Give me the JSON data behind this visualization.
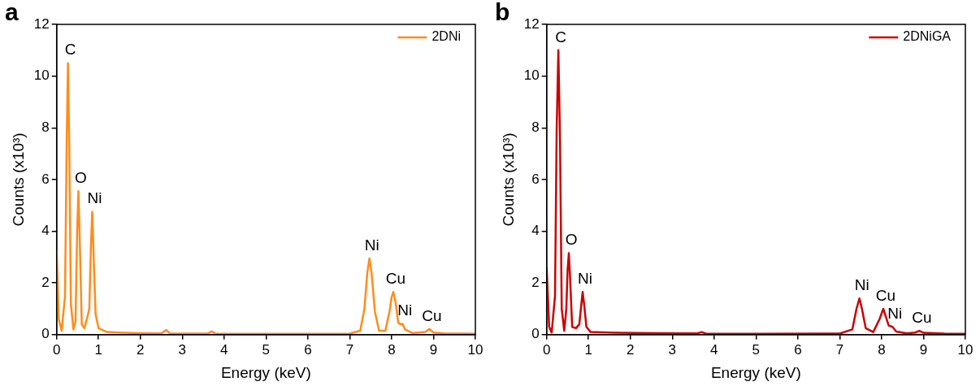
{
  "chart_data": [
    {
      "type": "line",
      "title": "a",
      "xlabel": "Energy (keV)",
      "ylabel": "Counts (x10³)",
      "xlim": [
        0,
        10
      ],
      "xticks": [
        0,
        1,
        2,
        3,
        4,
        5,
        6,
        7,
        8,
        9,
        10
      ],
      "ylim": [
        0,
        12
      ],
      "yticks": [
        0,
        2,
        4,
        6,
        8,
        10,
        12
      ],
      "legend": "top right",
      "series": [
        {
          "name": "2DNi",
          "color": "#ff8c1a",
          "x": [
            0,
            0.05,
            0.12,
            0.2,
            0.24,
            0.27,
            0.3,
            0.34,
            0.4,
            0.45,
            0.49,
            0.52,
            0.55,
            0.6,
            0.66,
            0.72,
            0.78,
            0.82,
            0.85,
            0.88,
            0.93,
            1.0,
            1.2,
            1.5,
            2.0,
            2.5,
            2.55,
            2.62,
            2.7,
            3.0,
            3.6,
            3.7,
            3.8,
            5,
            6,
            7,
            7.25,
            7.35,
            7.42,
            7.47,
            7.52,
            7.6,
            7.7,
            7.85,
            7.95,
            8.0,
            8.04,
            8.09,
            8.16,
            8.22,
            8.26,
            8.32,
            8.5,
            8.8,
            8.9,
            9.0,
            9.3,
            9.8,
            10
          ],
          "values": [
            3.3,
            0.6,
            0.15,
            1.5,
            7.5,
            10.5,
            7.5,
            1.2,
            0.2,
            0.5,
            4.0,
            5.55,
            3.8,
            0.4,
            0.25,
            0.6,
            1.0,
            3.5,
            4.75,
            3.2,
            0.8,
            0.25,
            0.1,
            0.08,
            0.06,
            0.05,
            0.1,
            0.18,
            0.05,
            0.04,
            0.04,
            0.12,
            0.04,
            0.03,
            0.03,
            0.04,
            0.15,
            1.0,
            2.4,
            2.95,
            2.4,
            0.9,
            0.15,
            0.15,
            0.9,
            1.45,
            1.65,
            1.3,
            0.45,
            0.4,
            0.42,
            0.2,
            0.06,
            0.1,
            0.22,
            0.08,
            0.04,
            0.04,
            0.03
          ]
        }
      ],
      "annotations": [
        {
          "text": "C",
          "x": 0.27,
          "y": 10.5
        },
        {
          "text": "O",
          "x": 0.52,
          "y": 5.55
        },
        {
          "text": "Ni",
          "x": 0.85,
          "y": 4.75
        },
        {
          "text": "Ni",
          "x": 7.47,
          "y": 2.95
        },
        {
          "text": "Cu",
          "x": 8.04,
          "y": 1.65
        },
        {
          "text": "Ni",
          "x": 8.26,
          "y": 0.42
        },
        {
          "text": "Cu",
          "x": 8.9,
          "y": 0.22
        }
      ]
    },
    {
      "type": "line",
      "title": "b",
      "xlabel": "Energy (keV)",
      "ylabel": "Counts (x10³)",
      "xlim": [
        0,
        10
      ],
      "xticks": [
        0,
        1,
        2,
        3,
        4,
        5,
        6,
        7,
        8,
        9,
        10
      ],
      "ylim": [
        0,
        12
      ],
      "yticks": [
        0,
        2,
        4,
        6,
        8,
        10,
        12
      ],
      "legend": "top right",
      "series": [
        {
          "name": "2DNiGA",
          "color": "#cc0000",
          "x": [
            0,
            0.06,
            0.12,
            0.2,
            0.24,
            0.28,
            0.32,
            0.36,
            0.42,
            0.47,
            0.5,
            0.53,
            0.56,
            0.61,
            0.7,
            0.78,
            0.83,
            0.86,
            0.9,
            0.95,
            1.05,
            1.5,
            2.6,
            3.6,
            3.7,
            3.8,
            5,
            7,
            7.3,
            7.4,
            7.47,
            7.53,
            7.62,
            7.8,
            7.95,
            8.04,
            8.1,
            8.17,
            8.26,
            8.35,
            8.6,
            8.8,
            8.9,
            9.0,
            9.5,
            10
          ],
          "values": [
            2.6,
            0.3,
            0.08,
            1.5,
            8.0,
            11.0,
            7.5,
            1.0,
            0.15,
            1.0,
            2.5,
            3.15,
            2.2,
            0.3,
            0.25,
            0.4,
            1.2,
            1.65,
            1.1,
            0.3,
            0.1,
            0.08,
            0.06,
            0.05,
            0.1,
            0.04,
            0.03,
            0.04,
            0.2,
            1.0,
            1.4,
            1.0,
            0.25,
            0.1,
            0.6,
            1.0,
            0.7,
            0.35,
            0.3,
            0.12,
            0.05,
            0.08,
            0.15,
            0.07,
            0.04,
            0.03
          ]
        }
      ],
      "annotations": [
        {
          "text": "C",
          "x": 0.28,
          "y": 11.0
        },
        {
          "text": "O",
          "x": 0.53,
          "y": 3.15
        },
        {
          "text": "Ni",
          "x": 0.86,
          "y": 1.65
        },
        {
          "text": "Ni",
          "x": 7.47,
          "y": 1.4
        },
        {
          "text": "Cu",
          "x": 8.04,
          "y": 1.0
        },
        {
          "text": "Ni",
          "x": 8.26,
          "y": 0.3
        },
        {
          "text": "Cu",
          "x": 8.9,
          "y": 0.15
        }
      ]
    }
  ]
}
